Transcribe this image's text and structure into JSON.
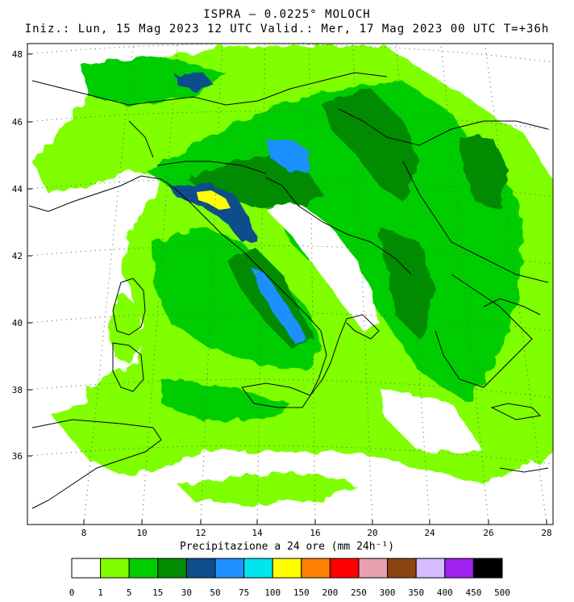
{
  "title": {
    "line1": "ISPRA – 0.0225° MOLOCH",
    "line2": "Iniz.: Lun, 15 Mag 2023  12 UTC  Valid.: Mer, 17 Mag 2023  00 UTC  T=+36h"
  },
  "map": {
    "lon_ticks": [
      "8",
      "10",
      "12",
      "14",
      "16",
      "20",
      "24",
      "26",
      "28"
    ],
    "lat_ticks": [
      "48",
      "46",
      "44",
      "42",
      "40",
      "38",
      "36"
    ],
    "lon_range": [
      6.5,
      28.5
    ],
    "lat_range": [
      34,
      48.2
    ]
  },
  "colorbar": {
    "label": "Precipitazione a 24 ore (mm 24h⁻¹)",
    "thresholds": [
      "0",
      "1",
      "5",
      "15",
      "30",
      "50",
      "75",
      "100",
      "150",
      "200",
      "250",
      "300",
      "350",
      "400",
      "450",
      "500"
    ],
    "colors": [
      "#ffffff",
      "#7fff00",
      "#00cd00",
      "#008b00",
      "#104e8b",
      "#1e90ff",
      "#00e5ee",
      "#ffff00",
      "#ff7f00",
      "#ff0000",
      "#e8a0b0",
      "#8b4513",
      "#d4bcff",
      "#a020f0",
      "#000000"
    ]
  }
}
